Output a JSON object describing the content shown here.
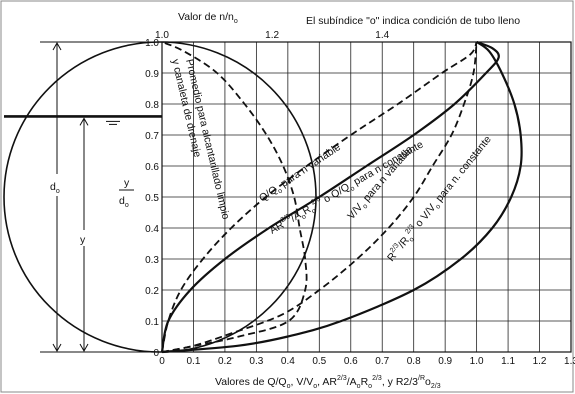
{
  "chart_data": {
    "type": "line",
    "title": "El subíndice \"o\" indica condición de tubo lleno",
    "top_axis": {
      "label": "Valor de n/n",
      "label_sub": "o",
      "ticks": [
        "1.0",
        "1.2",
        "1.4"
      ],
      "range": [
        1.0,
        1.6
      ]
    },
    "x_axis": {
      "label_parts": [
        "Valores de Q/Q",
        "o",
        ", V/V",
        "o",
        ", AR",
        "2/3",
        "/A",
        "o",
        "R",
        "o",
        "2/3",
        ", y  R",
        "2/3",
        "/R",
        "o",
        "2/3"
      ],
      "ticks": [
        "0",
        "0.1",
        "0.2",
        "0.3",
        "0.4",
        "0.5",
        "0.6",
        "0.7",
        "0.8",
        "0.9",
        "1.0",
        "1.1",
        "1.2",
        "1.3"
      ],
      "range": [
        0,
        1.3
      ]
    },
    "y_axis": {
      "label_top": "y",
      "label_bottom": "d",
      "label_bottom_sub": "o",
      "ticks": [
        "0",
        "0.1",
        "0.2",
        "0.3",
        "0.4",
        "0.5",
        "0.6",
        "0.7",
        "0.8",
        "0.9",
        "1.0"
      ],
      "range": [
        0,
        1.0
      ]
    },
    "pipe_labels": {
      "diameter": "d",
      "diameter_sub": "o",
      "depth": "y"
    },
    "series": [
      {
        "name": "Promedio para alcantarillado limpio y canaleta de drenaje",
        "axis": "top",
        "style": "dashed",
        "label_lines": [
          "Promedio para alcantarillado limpio",
          "y canaleta de drenaje"
        ],
        "points": [
          [
            1.0,
            0.0
          ],
          [
            1.06,
            0.02
          ],
          [
            1.14,
            0.05
          ],
          [
            1.23,
            0.1
          ],
          [
            1.26,
            0.2
          ],
          [
            1.26,
            0.3
          ],
          [
            1.25,
            0.4
          ],
          [
            1.24,
            0.5
          ],
          [
            1.22,
            0.6
          ],
          [
            1.19,
            0.7
          ],
          [
            1.15,
            0.8
          ],
          [
            1.1,
            0.9
          ],
          [
            1.04,
            0.97
          ],
          [
            1.0,
            1.0
          ]
        ]
      },
      {
        "name": "Q/Qo para n variable",
        "style": "dashed",
        "label": [
          "Q/Q",
          "o",
          " para n variable"
        ],
        "points": [
          [
            0,
            0
          ],
          [
            0.02,
            0.1
          ],
          [
            0.06,
            0.2
          ],
          [
            0.13,
            0.3
          ],
          [
            0.22,
            0.4
          ],
          [
            0.33,
            0.5
          ],
          [
            0.46,
            0.6
          ],
          [
            0.6,
            0.7
          ],
          [
            0.75,
            0.8
          ],
          [
            0.89,
            0.9
          ],
          [
            0.98,
            0.96
          ],
          [
            1.0,
            1.0
          ]
        ]
      },
      {
        "name": "AR2/3/AoRo2/3 o Q/Qo para n constante",
        "style": "solid",
        "label": [
          "AR",
          "2/3",
          "/A",
          "o",
          "R",
          "o",
          "2/3",
          " o Q/Q",
          "o",
          " para n constante"
        ],
        "points": [
          [
            0,
            0
          ],
          [
            0.02,
            0.1
          ],
          [
            0.09,
            0.2
          ],
          [
            0.2,
            0.3
          ],
          [
            0.34,
            0.4
          ],
          [
            0.5,
            0.5
          ],
          [
            0.65,
            0.6
          ],
          [
            0.8,
            0.7
          ],
          [
            0.93,
            0.8
          ],
          [
            1.03,
            0.9
          ],
          [
            1.07,
            0.95
          ],
          [
            1.05,
            0.98
          ],
          [
            1.0,
            1.0
          ]
        ]
      },
      {
        "name": "V/Vo para n variable",
        "style": "dashed",
        "label": [
          "V/V",
          "o",
          " para n variable"
        ],
        "points": [
          [
            0,
            0
          ],
          [
            0.1,
            0.02
          ],
          [
            0.22,
            0.06
          ],
          [
            0.38,
            0.12
          ],
          [
            0.5,
            0.2
          ],
          [
            0.62,
            0.3
          ],
          [
            0.72,
            0.4
          ],
          [
            0.8,
            0.5
          ],
          [
            0.86,
            0.6
          ],
          [
            0.92,
            0.7
          ],
          [
            0.96,
            0.8
          ],
          [
            0.99,
            0.9
          ],
          [
            1.0,
            1.0
          ]
        ]
      },
      {
        "name": "R2/3/Ro2/3 o V/Vo para n constante",
        "style": "solid",
        "label": [
          "R",
          "2/3",
          "/R",
          "o",
          "2/3",
          " o V/V",
          "o",
          " para n. constante"
        ],
        "points": [
          [
            0,
            0
          ],
          [
            0.24,
            0.02
          ],
          [
            0.4,
            0.05
          ],
          [
            0.57,
            0.1
          ],
          [
            0.8,
            0.2
          ],
          [
            0.95,
            0.3
          ],
          [
            1.05,
            0.4
          ],
          [
            1.11,
            0.5
          ],
          [
            1.14,
            0.6
          ],
          [
            1.14,
            0.7
          ],
          [
            1.12,
            0.8
          ],
          [
            1.08,
            0.9
          ],
          [
            1.04,
            0.97
          ],
          [
            1.0,
            1.0
          ]
        ]
      }
    ],
    "grid": true,
    "legend": "none (curves labeled inline)"
  }
}
